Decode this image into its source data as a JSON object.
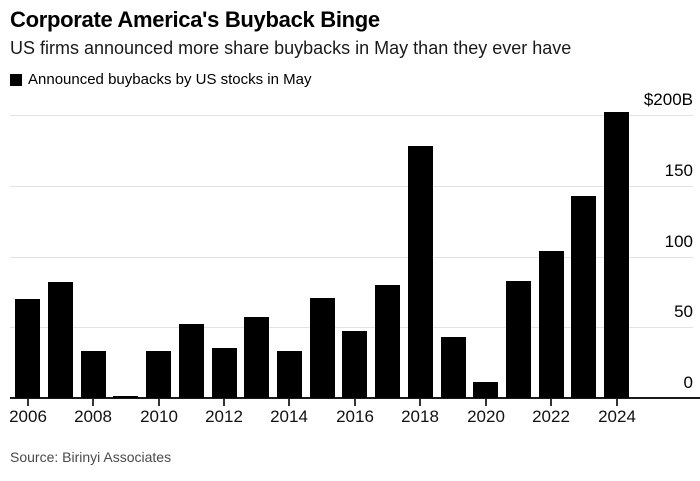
{
  "header": {
    "title": "Corporate America's Buyback Binge",
    "subtitle": "US firms announced more share buybacks in May than they ever have"
  },
  "legend": {
    "label": "Announced buybacks by US stocks in May",
    "swatch_color": "#000000"
  },
  "source": "Source: Birinyi Associates",
  "colors": {
    "bar": "#000000",
    "gridline": "#e2e2e2",
    "axis": "#1a1a1a",
    "source_text": "#4a4a4a",
    "background": "#ffffff"
  },
  "chart_data": {
    "type": "bar",
    "title": "Corporate America's Buyback Binge",
    "subtitle": "US firms announced more share buybacks in May than they ever have",
    "series": [
      {
        "name": "Announced buybacks by US stocks in May",
        "values": [
          70,
          82,
          33,
          1.5,
          33,
          52,
          35,
          57,
          33,
          71,
          47,
          80,
          178,
          43,
          11,
          83,
          104,
          143,
          202
        ]
      }
    ],
    "categories": [
      2006,
      2007,
      2008,
      2009,
      2010,
      2011,
      2012,
      2013,
      2014,
      2015,
      2016,
      2017,
      2018,
      2019,
      2020,
      2021,
      2022,
      2023,
      2024
    ],
    "unit": "$B",
    "ylim": [
      0,
      200
    ],
    "y_ticks": [
      {
        "label": "$200B",
        "value": 200
      },
      {
        "label": "150",
        "value": 150
      },
      {
        "label": "100",
        "value": 100
      },
      {
        "label": "50",
        "value": 50
      },
      {
        "label": "0",
        "value": 0
      }
    ],
    "x_ticks": [
      {
        "label": "2006",
        "year": 2006
      },
      {
        "label": "2008",
        "year": 2008
      },
      {
        "label": "2010",
        "year": 2010
      },
      {
        "label": "2012",
        "year": 2012
      },
      {
        "label": "2014",
        "year": 2014
      },
      {
        "label": "2016",
        "year": 2016
      },
      {
        "label": "2018",
        "year": 2018
      },
      {
        "label": "2020",
        "year": 2020
      },
      {
        "label": "2022",
        "year": 2022
      },
      {
        "label": "2024",
        "year": 2024
      }
    ],
    "grid": "horizontal",
    "legend_position": "top-left",
    "y_axis_side": "right"
  }
}
